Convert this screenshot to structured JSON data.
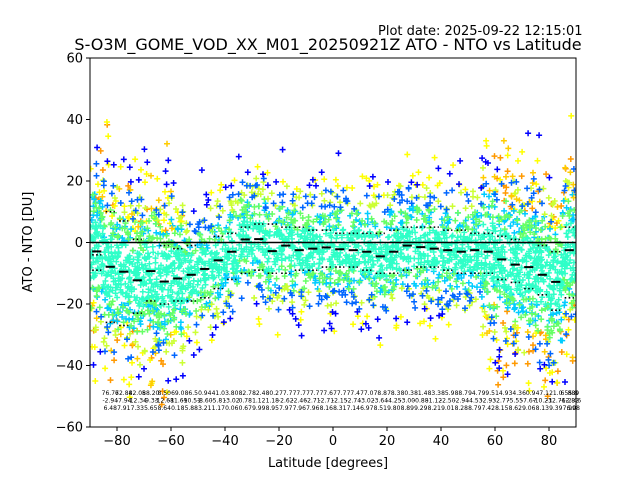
{
  "chart_data": {
    "type": "scatter",
    "plot_date": "Plot date: 2025-09-22 12:15:01",
    "title": "S-O3M_GOME_VOD_XX_M01_20250921Z ATO - NTO vs Latitude",
    "xlabel": "Latitude [degrees]",
    "ylabel": "ATO - NTO [DU]",
    "xlim": [
      -90,
      90
    ],
    "ylim": [
      -60,
      60
    ],
    "xticks": [
      -80,
      -60,
      -40,
      -20,
      0,
      20,
      40,
      60,
      80
    ],
    "yticks": [
      -60,
      -40,
      -20,
      0,
      20,
      40,
      60
    ],
    "reference_line_y": 0,
    "bin_width": 5,
    "bin_centers": [
      -87.5,
      -82.5,
      -77.5,
      -72.5,
      -67.5,
      -62.5,
      -57.5,
      -52.5,
      -47.5,
      -42.5,
      -37.5,
      -32.5,
      -27.5,
      -22.5,
      -17.5,
      -12.5,
      -7.5,
      -2.5,
      2.5,
      7.5,
      12.5,
      17.5,
      22.5,
      27.5,
      32.5,
      37.5,
      42.5,
      47.5,
      52.5,
      57.5,
      62.5,
      67.5,
      72.5,
      77.5,
      82.5,
      87.5
    ],
    "bin_means": [
      -2.9,
      -7.9,
      -9.5,
      -12.3,
      -9.3,
      -12.7,
      -11.7,
      -10.5,
      -8.6,
      -5.8,
      -3.0,
      1.0,
      1.1,
      -2.8,
      -1.0,
      -2.5,
      -2.0,
      -1.6,
      -2.2,
      -2.5,
      -3.0,
      -4.5,
      -3.0,
      -1.0,
      -1.5,
      -2.0,
      -2.5,
      -3.0,
      -2.5,
      -3.0,
      -5.5,
      -7.2,
      -8.0,
      -10.5,
      -12.8,
      -2.5
    ],
    "bin_upper": [
      -9.0,
      10.0,
      7.0,
      1.0,
      0.0,
      -1.0,
      -2.0,
      -1.0,
      0.0,
      2.0,
      3.0,
      5.0,
      6.0,
      6.0,
      5.0,
      5.0,
      4.0,
      4.0,
      3.0,
      3.0,
      3.0,
      3.0,
      4.0,
      5.0,
      5.0,
      5.0,
      4.0,
      4.0,
      3.0,
      3.0,
      2.0,
      1.0,
      0.0,
      -1.0,
      -3.0,
      5.0
    ],
    "bin_lower": [
      -4.0,
      -26.0,
      -27.0,
      -23.0,
      -19.0,
      -20.0,
      -19.0,
      -19.0,
      -18.0,
      -15.0,
      -12.0,
      -10.0,
      -9.0,
      -10.0,
      -10.0,
      -9.0,
      -9.0,
      -8.0,
      -8.0,
      -8.0,
      -9.0,
      -10.0,
      -10.0,
      -9.0,
      -8.0,
      -8.0,
      -9.0,
      -10.0,
      -10.0,
      -10.0,
      -12.0,
      -13.0,
      -15.0,
      -17.0,
      -22.0,
      -18.0
    ],
    "scatter_color_scale": [
      "#0000ff",
      "#0066ff",
      "#00ccff",
      "#2fffc8",
      "#66ff66",
      "#ccff33",
      "#ffff00",
      "#ffcc00",
      "#ff9900"
    ],
    "colors": {
      "scatter_core": "#2fffc8",
      "mean_marker": "#000000",
      "reference_line": "#000000"
    },
    "stats_labels": [
      {
        "lat": -82.5,
        "lines": [
          "76.76",
          "-2.94",
          "6.48"
        ]
      },
      {
        "lat": -77.5,
        "lines": [
          "72.84",
          "-7.94",
          "7.91"
        ]
      },
      {
        "lat": -72.5,
        "lines": [
          "82.05",
          "-12.34",
          "7.33"
        ]
      },
      {
        "lat": -67.5,
        "lines": [
          "88.20",
          "-9.33",
          "5.65"
        ]
      },
      {
        "lat": -62.5,
        "lines": [
          "8.50",
          "-12.68",
          "8.64"
        ]
      },
      {
        "lat": -57.5,
        "lines": [
          "69.0",
          "-11.69",
          "0.18"
        ]
      },
      {
        "lat": -52.5,
        "lines": [
          "86.5",
          "-10.51",
          "5.88"
        ]
      },
      {
        "lat": -47.5,
        "lines": [
          "0.94",
          "-8.60",
          "3.21"
        ]
      },
      {
        "lat": -42.5,
        "lines": [
          "41.0",
          "-5.81",
          "1.17"
        ]
      },
      {
        "lat": -37.5,
        "lines": [
          "3.80",
          "-3.02",
          "0.06"
        ]
      },
      {
        "lat": -32.5,
        "lines": [
          "82.7",
          "0.78",
          "0.67"
        ]
      },
      {
        "lat": -27.5,
        "lines": [
          "82.4",
          "1.12",
          "9.99"
        ]
      },
      {
        "lat": -22.5,
        "lines": [
          "80.2",
          "1.18",
          "8.95"
        ]
      },
      {
        "lat": -17.5,
        "lines": [
          "77.7",
          "-2.62",
          "7.97"
        ]
      },
      {
        "lat": -12.5,
        "lines": [
          "77.7",
          "-2.46",
          "7.96"
        ]
      },
      {
        "lat": -7.5,
        "lines": [
          "77.7",
          "-2.71",
          "7.96"
        ]
      },
      {
        "lat": -2.5,
        "lines": [
          "77.6",
          "-2.71",
          "8.16"
        ]
      },
      {
        "lat": 2.5,
        "lines": [
          "77.7",
          "-2.15",
          "8.31"
        ]
      },
      {
        "lat": 7.5,
        "lines": [
          "77.4",
          "-2.74",
          "7.14"
        ]
      },
      {
        "lat": 12.5,
        "lines": [
          "77.0",
          "-3.02",
          "6.97"
        ]
      },
      {
        "lat": 17.5,
        "lines": [
          "78.8",
          "-3.64",
          "8.51"
        ]
      },
      {
        "lat": 22.5,
        "lines": [
          "78.3",
          "-4.25",
          "9.80"
        ]
      },
      {
        "lat": 27.5,
        "lines": [
          "80.3",
          "-3.00",
          "8.89"
        ]
      },
      {
        "lat": 32.5,
        "lines": [
          "81.4",
          "-0.88",
          "9.29"
        ]
      },
      {
        "lat": 37.5,
        "lines": [
          "83.3",
          "-1.12",
          "8.21"
        ]
      },
      {
        "lat": 42.5,
        "lines": [
          "85.9",
          "-2.50",
          "9.01"
        ]
      },
      {
        "lat": 47.5,
        "lines": [
          "88.7",
          "-2.94",
          "8.28"
        ]
      },
      {
        "lat": 52.5,
        "lines": [
          "94.7",
          "-4.53",
          "8.79"
        ]
      },
      {
        "lat": 57.5,
        "lines": [
          "99.5",
          "-2.93",
          "7.42"
        ]
      },
      {
        "lat": 62.5,
        "lines": [
          "14.9",
          "-2.77",
          "8.15"
        ]
      },
      {
        "lat": 67.5,
        "lines": [
          "34.3",
          "-5.55",
          "8.62"
        ]
      },
      {
        "lat": 72.5,
        "lines": [
          "60.9",
          "-7.67",
          "9.06"
        ]
      },
      {
        "lat": 77.5,
        "lines": [
          "47.1",
          "-10.23",
          "8.13"
        ]
      },
      {
        "lat": 82.5,
        "lines": [
          "21.0",
          "-12.76",
          "9.39"
        ]
      },
      {
        "lat": 87.5,
        "lines": [
          "655.8",
          "-12.82",
          "7.99"
        ]
      },
      {
        "lat": 89.0,
        "lines": [
          "889",
          "-2.46",
          "6.08"
        ]
      }
    ]
  }
}
